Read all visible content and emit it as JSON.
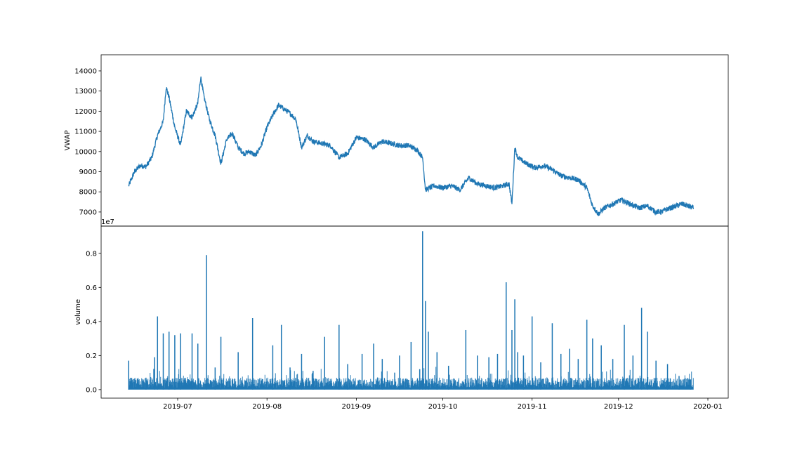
{
  "chart_data": [
    {
      "type": "line",
      "ylabel": "VWAP",
      "xlabel": "",
      "ylim": [
        6300,
        14800
      ],
      "yticks": [
        7000,
        8000,
        9000,
        10000,
        11000,
        12000,
        13000,
        14000
      ],
      "x_date_range": [
        "2019-06-14",
        "2019-12-27"
      ],
      "color": "#1f77b4",
      "series": [
        {
          "x": [
            "2019-06-14",
            "2019-06-16",
            "2019-06-18",
            "2019-06-20",
            "2019-06-22",
            "2019-06-24",
            "2019-06-26",
            "2019-06-27",
            "2019-06-28",
            "2019-06-30",
            "2019-07-02",
            "2019-07-04",
            "2019-07-06",
            "2019-07-08",
            "2019-07-09",
            "2019-07-10",
            "2019-07-12",
            "2019-07-14",
            "2019-07-16",
            "2019-07-18",
            "2019-07-20",
            "2019-07-22",
            "2019-07-24",
            "2019-07-26",
            "2019-07-28",
            "2019-07-30",
            "2019-08-01",
            "2019-08-03",
            "2019-08-05",
            "2019-08-07",
            "2019-08-09",
            "2019-08-11",
            "2019-08-13",
            "2019-08-15",
            "2019-08-17",
            "2019-08-20",
            "2019-08-23",
            "2019-08-26",
            "2019-08-29",
            "2019-09-01",
            "2019-09-04",
            "2019-09-07",
            "2019-09-10",
            "2019-09-13",
            "2019-09-16",
            "2019-09-19",
            "2019-09-22",
            "2019-09-24",
            "2019-09-25",
            "2019-09-28",
            "2019-10-01",
            "2019-10-04",
            "2019-10-07",
            "2019-10-10",
            "2019-10-13",
            "2019-10-16",
            "2019-10-19",
            "2019-10-22",
            "2019-10-24",
            "2019-10-25",
            "2019-10-26",
            "2019-10-27",
            "2019-10-30",
            "2019-11-02",
            "2019-11-05",
            "2019-11-08",
            "2019-11-11",
            "2019-11-14",
            "2019-11-17",
            "2019-11-20",
            "2019-11-22",
            "2019-11-24",
            "2019-11-26",
            "2019-11-29",
            "2019-12-02",
            "2019-12-05",
            "2019-12-08",
            "2019-12-11",
            "2019-12-14",
            "2019-12-16",
            "2019-12-17",
            "2019-12-19",
            "2019-12-21",
            "2019-12-23",
            "2019-12-25",
            "2019-12-27"
          ],
          "y": [
            8300,
            9000,
            9300,
            9250,
            9700,
            10800,
            11500,
            13200,
            12700,
            11200,
            10300,
            12000,
            11700,
            12400,
            13700,
            12800,
            11600,
            10800,
            9400,
            10600,
            10900,
            10200,
            9900,
            10000,
            9800,
            10300,
            11200,
            11800,
            12300,
            12100,
            11900,
            11600,
            10200,
            10800,
            10500,
            10400,
            10300,
            9700,
            9900,
            10700,
            10600,
            10200,
            10500,
            10400,
            10300,
            10300,
            10100,
            9700,
            8100,
            8300,
            8200,
            8300,
            8100,
            8700,
            8400,
            8300,
            8200,
            8300,
            8400,
            7400,
            10200,
            9700,
            9400,
            9200,
            9300,
            9100,
            8800,
            8700,
            8600,
            8200,
            7300,
            6900,
            7200,
            7400,
            7600,
            7400,
            7200,
            7300,
            7000,
            7000,
            7100,
            7200,
            7300,
            7400,
            7300,
            7200
          ]
        }
      ]
    },
    {
      "type": "bar",
      "ylabel": "volume",
      "xlabel": "",
      "scale_label": "1e7",
      "ylim": [
        -0.05,
        0.96
      ],
      "yticks": [
        0.0,
        0.2,
        0.4,
        0.6,
        0.8
      ],
      "ytick_labels": [
        "0.0",
        "0.2",
        "0.4",
        "0.6",
        "0.8"
      ],
      "xticks": [
        "2019-07-01",
        "2019-08-01",
        "2019-09-01",
        "2019-10-01",
        "2019-11-01",
        "2019-12-01",
        "2020-01-01"
      ],
      "xtick_labels": [
        "2019-07",
        "2019-08",
        "2019-09",
        "2019-10",
        "2019-11",
        "2019-12",
        "2020-01"
      ],
      "x_date_range": [
        "2019-06-14",
        "2019-12-27"
      ],
      "color": "#1f77b4",
      "series": [
        {
          "x": [
            "2019-06-14",
            "2019-06-20",
            "2019-06-23",
            "2019-06-24",
            "2019-06-26",
            "2019-06-28",
            "2019-06-30",
            "2019-07-02",
            "2019-07-06",
            "2019-07-08",
            "2019-07-11",
            "2019-07-14",
            "2019-07-16",
            "2019-07-22",
            "2019-07-27",
            "2019-08-03",
            "2019-08-06",
            "2019-08-09",
            "2019-08-13",
            "2019-08-17",
            "2019-08-21",
            "2019-08-26",
            "2019-08-29",
            "2019-09-03",
            "2019-09-07",
            "2019-09-10",
            "2019-09-16",
            "2019-09-20",
            "2019-09-23",
            "2019-09-24",
            "2019-09-25",
            "2019-09-26",
            "2019-09-29",
            "2019-10-03",
            "2019-10-09",
            "2019-10-13",
            "2019-10-17",
            "2019-10-20",
            "2019-10-23",
            "2019-10-25",
            "2019-10-26",
            "2019-10-27",
            "2019-10-29",
            "2019-11-01",
            "2019-11-04",
            "2019-11-08",
            "2019-11-11",
            "2019-11-14",
            "2019-11-17",
            "2019-11-20",
            "2019-11-22",
            "2019-11-25",
            "2019-11-29",
            "2019-12-03",
            "2019-12-06",
            "2019-12-09",
            "2019-12-11",
            "2019-12-14",
            "2019-12-18",
            "2019-12-22",
            "2019-12-26"
          ],
          "y": [
            0.17,
            0.07,
            0.19,
            0.43,
            0.33,
            0.34,
            0.32,
            0.33,
            0.33,
            0.27,
            0.79,
            0.13,
            0.31,
            0.22,
            0.42,
            0.26,
            0.38,
            0.13,
            0.21,
            0.11,
            0.31,
            0.38,
            0.15,
            0.21,
            0.27,
            0.18,
            0.2,
            0.28,
            0.12,
            0.93,
            0.52,
            0.34,
            0.22,
            0.14,
            0.35,
            0.2,
            0.19,
            0.21,
            0.63,
            0.35,
            0.53,
            0.22,
            0.2,
            0.43,
            0.16,
            0.39,
            0.21,
            0.24,
            0.18,
            0.41,
            0.3,
            0.26,
            0.18,
            0.38,
            0.2,
            0.48,
            0.34,
            0.17,
            0.15,
            0.08,
            0.06
          ]
        }
      ]
    }
  ]
}
